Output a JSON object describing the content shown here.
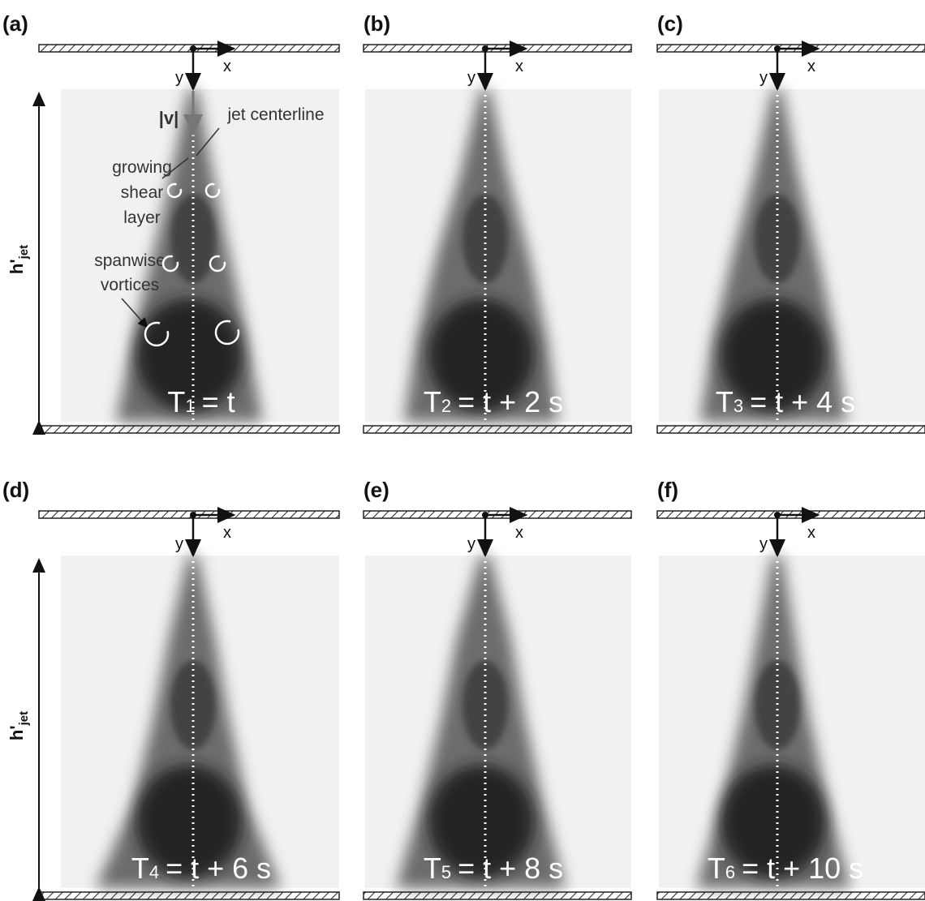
{
  "panels": [
    {
      "label": "(a)",
      "time": {
        "symbol": "T",
        "index": "1",
        "expr": "= t"
      }
    },
    {
      "label": "(b)",
      "time": {
        "symbol": "T",
        "index": "2",
        "expr": "= t + 2 s"
      }
    },
    {
      "label": "(c)",
      "time": {
        "symbol": "T",
        "index": "3",
        "expr": "= t + 4 s"
      }
    },
    {
      "label": "(d)",
      "time": {
        "symbol": "T",
        "index": "4",
        "expr": "= t + 6 s"
      }
    },
    {
      "label": "(e)",
      "time": {
        "symbol": "T",
        "index": "5",
        "expr": "= t + 8 s"
      }
    },
    {
      "label": "(f)",
      "time": {
        "symbol": "T",
        "index": "6",
        "expr": "= t + 10 s"
      }
    }
  ],
  "axes": {
    "x": "x",
    "y": "y"
  },
  "height_label": {
    "main": "h'",
    "sub": "jet"
  },
  "annotations": {
    "velocity": "|v|",
    "centerline": "jet centerline",
    "shear_layer": [
      "growing",
      "shear",
      "layer"
    ],
    "vortices": [
      "spanwise",
      "vortices"
    ]
  }
}
